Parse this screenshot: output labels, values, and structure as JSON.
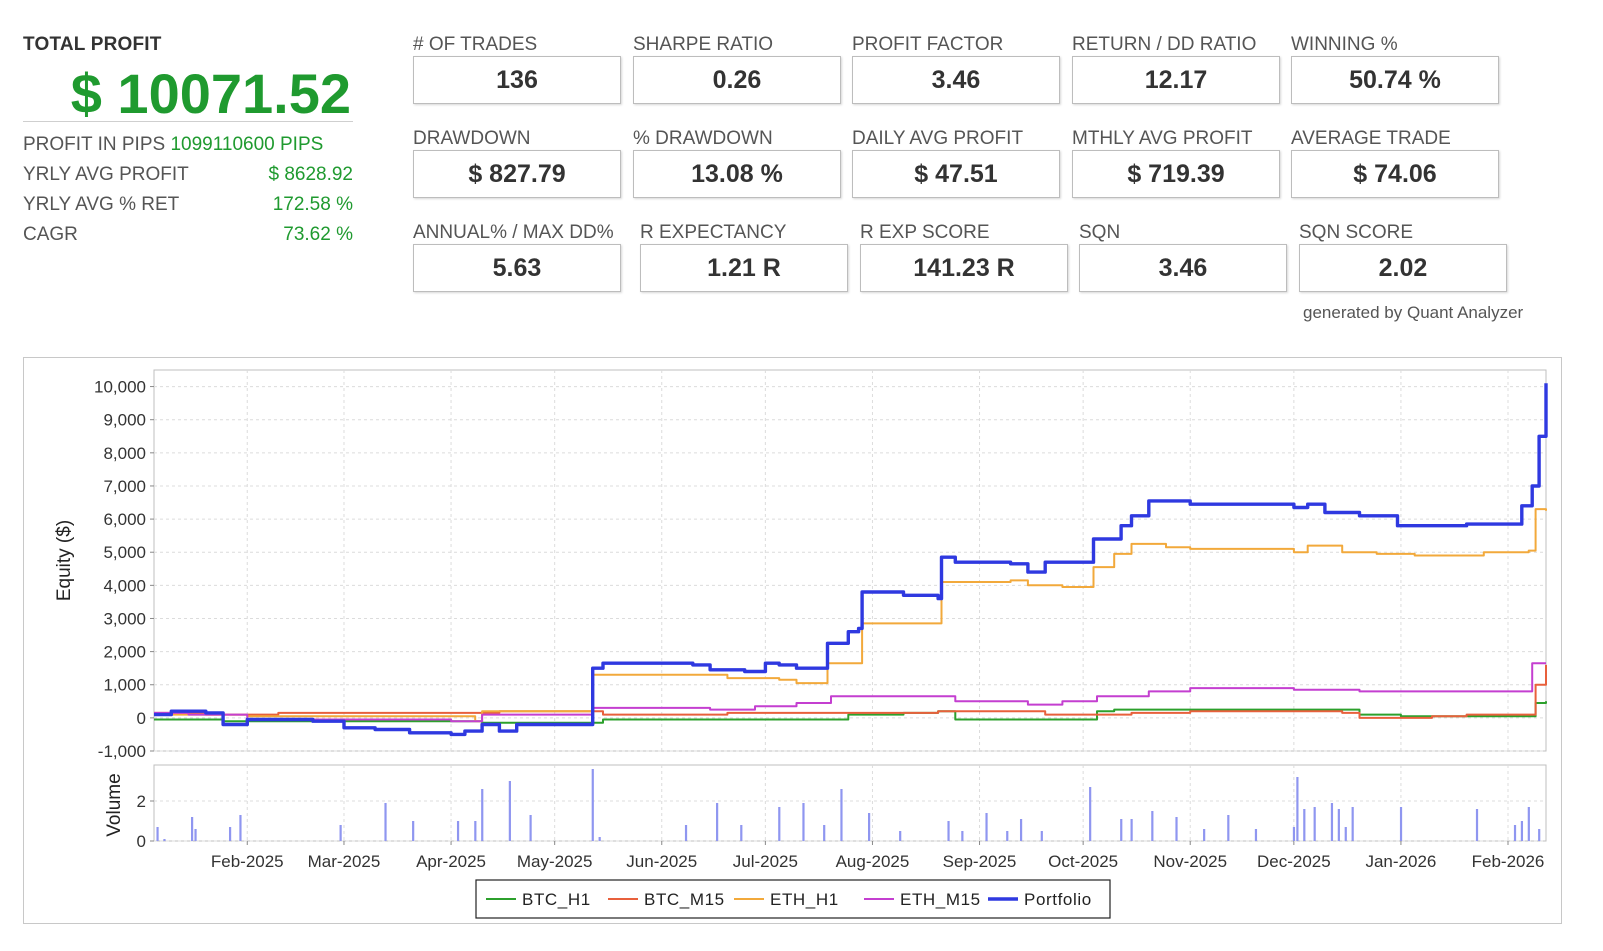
{
  "summary": {
    "total_profit_label": "TOTAL PROFIT",
    "total_profit_value": "$ 10071.52",
    "profit_in_pips_label": "PROFIT IN PIPS",
    "profit_in_pips_value": "1099110600 PIPS",
    "rows": [
      {
        "label": "YRLY AVG PROFIT",
        "value": "$ 8628.92"
      },
      {
        "label": "YRLY AVG % RET",
        "value": "172.58 %"
      },
      {
        "label": "CAGR",
        "value": "73.62 %"
      }
    ]
  },
  "metrics": [
    {
      "label": "# OF TRADES",
      "value": "136"
    },
    {
      "label": "SHARPE RATIO",
      "value": "0.26"
    },
    {
      "label": "PROFIT FACTOR",
      "value": "3.46"
    },
    {
      "label": "RETURN / DD RATIO",
      "value": "12.17"
    },
    {
      "label": "WINNING %",
      "value": "50.74 %"
    },
    {
      "label": "DRAWDOWN",
      "value": "$ 827.79"
    },
    {
      "label": "% DRAWDOWN",
      "value": "13.08 %"
    },
    {
      "label": "DAILY AVG PROFIT",
      "value": "$ 47.51"
    },
    {
      "label": "MTHLY AVG PROFIT",
      "value": "$ 719.39"
    },
    {
      "label": "AVERAGE TRADE",
      "value": "$ 74.06"
    },
    {
      "label": "ANNUAL% / MAX DD%",
      "value": "5.63"
    },
    {
      "label": "R EXPECTANCY",
      "value": "1.21 R"
    },
    {
      "label": "R EXP SCORE",
      "value": "141.23 R"
    },
    {
      "label": "SQN",
      "value": "3.46"
    },
    {
      "label": "SQN SCORE",
      "value": "2.02"
    }
  ],
  "footer": {
    "generated_by": "generated by Quant Analyzer"
  },
  "colors": {
    "profit_green": "#1f9a2f",
    "BTC_H1": "#2ca02c",
    "BTC_M15": "#e8603c",
    "ETH_H1": "#f2a93b",
    "ETH_M15": "#c43fd0",
    "Portfolio": "#2f39e0",
    "volume": "#8f96f0"
  },
  "chart_data": {
    "type": "line",
    "ylabel": "Equity ($)",
    "volume_label": "Volume",
    "ylim": [
      -1000,
      10500
    ],
    "y_ticks": [
      -1000,
      0,
      1000,
      2000,
      3000,
      4000,
      5000,
      6000,
      7000,
      8000,
      9000,
      10000
    ],
    "y_tick_labels": [
      "-1,000",
      "0",
      "1,000",
      "2,000",
      "3,000",
      "4,000",
      "5,000",
      "6,000",
      "7,000",
      "8,000",
      "9,000",
      "10,000"
    ],
    "volume_ylim": [
      0,
      3.8
    ],
    "volume_ticks": [
      0,
      2
    ],
    "x_range": [
      "2025-01-05",
      "2026-02-12"
    ],
    "x_ticks": [
      "2025-02-01",
      "2025-03-01",
      "2025-04-01",
      "2025-05-01",
      "2025-06-01",
      "2025-07-01",
      "2025-08-01",
      "2025-09-01",
      "2025-10-01",
      "2025-11-01",
      "2025-12-01",
      "2026-01-01",
      "2026-02-01"
    ],
    "x_tick_labels": [
      "Feb-2025",
      "Mar-2025",
      "Apr-2025",
      "May-2025",
      "Jun-2025",
      "Jul-2025",
      "Aug-2025",
      "Sep-2025",
      "Oct-2025",
      "Nov-2025",
      "Dec-2025",
      "Jan-2026",
      "Feb-2026"
    ],
    "legend_position": "bottom-center",
    "grid": true,
    "series": [
      {
        "name": "BTC_H1",
        "points": [
          [
            "2025-01-05",
            -50
          ],
          [
            "2025-01-20",
            -50
          ],
          [
            "2025-01-25",
            -100
          ],
          [
            "2025-02-15",
            -100
          ],
          [
            "2025-04-05",
            -100
          ],
          [
            "2025-04-10",
            -150
          ],
          [
            "2025-05-10",
            -150
          ],
          [
            "2025-05-15",
            -50
          ],
          [
            "2025-07-20",
            -50
          ],
          [
            "2025-07-25",
            100
          ],
          [
            "2025-08-10",
            150
          ],
          [
            "2025-08-20",
            200
          ],
          [
            "2025-08-25",
            -50
          ],
          [
            "2025-09-15",
            -50
          ],
          [
            "2025-10-01",
            -50
          ],
          [
            "2025-10-05",
            200
          ],
          [
            "2025-10-10",
            250
          ],
          [
            "2025-11-15",
            250
          ],
          [
            "2025-12-01",
            250
          ],
          [
            "2025-12-15",
            250
          ],
          [
            "2025-12-20",
            100
          ],
          [
            "2026-01-01",
            50
          ],
          [
            "2026-01-20",
            50
          ],
          [
            "2026-02-05",
            50
          ],
          [
            "2026-02-09",
            450
          ],
          [
            "2026-02-12",
            500
          ]
        ]
      },
      {
        "name": "BTC_M15",
        "points": [
          [
            "2025-01-05",
            150
          ],
          [
            "2025-01-15",
            150
          ],
          [
            "2025-01-20",
            100
          ],
          [
            "2025-02-01",
            100
          ],
          [
            "2025-02-10",
            150
          ],
          [
            "2025-04-10",
            150
          ],
          [
            "2025-04-15",
            200
          ],
          [
            "2025-05-10",
            200
          ],
          [
            "2025-05-15",
            100
          ],
          [
            "2025-06-15",
            100
          ],
          [
            "2025-06-20",
            150
          ],
          [
            "2025-07-15",
            150
          ],
          [
            "2025-08-10",
            150
          ],
          [
            "2025-08-20",
            200
          ],
          [
            "2025-09-10",
            200
          ],
          [
            "2025-09-20",
            100
          ],
          [
            "2025-10-10",
            100
          ],
          [
            "2025-10-15",
            150
          ],
          [
            "2025-11-01",
            200
          ],
          [
            "2025-12-01",
            200
          ],
          [
            "2025-12-15",
            150
          ],
          [
            "2025-12-20",
            0
          ],
          [
            "2026-01-10",
            50
          ],
          [
            "2026-01-20",
            100
          ],
          [
            "2026-02-05",
            100
          ],
          [
            "2026-02-09",
            1000
          ],
          [
            "2026-02-12",
            1600
          ]
        ]
      },
      {
        "name": "ETH_H1",
        "points": [
          [
            "2025-01-05",
            100
          ],
          [
            "2025-01-20",
            100
          ],
          [
            "2025-02-01",
            50
          ],
          [
            "2025-04-01",
            50
          ],
          [
            "2025-04-08",
            -100
          ],
          [
            "2025-04-10",
            200
          ],
          [
            "2025-05-11",
            200
          ],
          [
            "2025-05-12",
            1300
          ],
          [
            "2025-06-15",
            1300
          ],
          [
            "2025-06-20",
            1200
          ],
          [
            "2025-07-05",
            1150
          ],
          [
            "2025-07-10",
            1050
          ],
          [
            "2025-07-18",
            1050
          ],
          [
            "2025-07-19",
            1650
          ],
          [
            "2025-07-28",
            1650
          ],
          [
            "2025-07-29",
            2850
          ],
          [
            "2025-08-20",
            2850
          ],
          [
            "2025-08-21",
            4100
          ],
          [
            "2025-09-10",
            4150
          ],
          [
            "2025-09-15",
            4000
          ],
          [
            "2025-09-25",
            3950
          ],
          [
            "2025-10-03",
            3950
          ],
          [
            "2025-10-04",
            4550
          ],
          [
            "2025-10-10",
            4950
          ],
          [
            "2025-10-15",
            5250
          ],
          [
            "2025-10-25",
            5150
          ],
          [
            "2025-11-01",
            5100
          ],
          [
            "2025-11-15",
            5100
          ],
          [
            "2025-12-01",
            5000
          ],
          [
            "2025-12-05",
            5200
          ],
          [
            "2025-12-15",
            5000
          ],
          [
            "2025-12-25",
            4950
          ],
          [
            "2026-01-05",
            4900
          ],
          [
            "2026-01-25",
            5000
          ],
          [
            "2026-02-07",
            5050
          ],
          [
            "2026-02-09",
            6300
          ],
          [
            "2026-02-12",
            6250
          ]
        ]
      },
      {
        "name": "ETH_M15",
        "points": [
          [
            "2025-01-05",
            150
          ],
          [
            "2025-01-10",
            150
          ],
          [
            "2025-01-15",
            100
          ],
          [
            "2025-02-01",
            -50
          ],
          [
            "2025-03-01",
            -50
          ],
          [
            "2025-04-01",
            -100
          ],
          [
            "2025-04-10",
            100
          ],
          [
            "2025-05-11",
            100
          ],
          [
            "2025-05-12",
            300
          ],
          [
            "2025-06-15",
            250
          ],
          [
            "2025-06-28",
            350
          ],
          [
            "2025-07-10",
            450
          ],
          [
            "2025-07-20",
            650
          ],
          [
            "2025-08-20",
            650
          ],
          [
            "2025-08-25",
            500
          ],
          [
            "2025-09-15",
            400
          ],
          [
            "2025-09-25",
            500
          ],
          [
            "2025-10-05",
            650
          ],
          [
            "2025-10-20",
            800
          ],
          [
            "2025-11-01",
            900
          ],
          [
            "2025-11-15",
            900
          ],
          [
            "2025-12-01",
            850
          ],
          [
            "2025-12-15",
            850
          ],
          [
            "2025-12-20",
            800
          ],
          [
            "2026-01-15",
            800
          ],
          [
            "2026-02-05",
            800
          ],
          [
            "2026-02-08",
            1650
          ],
          [
            "2026-02-12",
            1650
          ]
        ]
      },
      {
        "name": "Portfolio",
        "points": [
          [
            "2025-01-05",
            100
          ],
          [
            "2025-01-10",
            200
          ],
          [
            "2025-01-20",
            150
          ],
          [
            "2025-01-25",
            -200
          ],
          [
            "2025-02-01",
            -50
          ],
          [
            "2025-02-20",
            -100
          ],
          [
            "2025-03-01",
            -300
          ],
          [
            "2025-03-10",
            -350
          ],
          [
            "2025-03-20",
            -450
          ],
          [
            "2025-04-01",
            -500
          ],
          [
            "2025-04-05",
            -400
          ],
          [
            "2025-04-10",
            -200
          ],
          [
            "2025-04-15",
            -400
          ],
          [
            "2025-04-20",
            -200
          ],
          [
            "2025-05-11",
            -200
          ],
          [
            "2025-05-12",
            1500
          ],
          [
            "2025-05-15",
            1650
          ],
          [
            "2025-06-10",
            1600
          ],
          [
            "2025-06-15",
            1450
          ],
          [
            "2025-06-25",
            1400
          ],
          [
            "2025-07-01",
            1650
          ],
          [
            "2025-07-05",
            1600
          ],
          [
            "2025-07-10",
            1500
          ],
          [
            "2025-07-18",
            1500
          ],
          [
            "2025-07-19",
            2250
          ],
          [
            "2025-07-25",
            2600
          ],
          [
            "2025-07-28",
            2700
          ],
          [
            "2025-07-29",
            3800
          ],
          [
            "2025-08-10",
            3700
          ],
          [
            "2025-08-20",
            3600
          ],
          [
            "2025-08-21",
            4850
          ],
          [
            "2025-08-25",
            4700
          ],
          [
            "2025-09-10",
            4650
          ],
          [
            "2025-09-15",
            4400
          ],
          [
            "2025-09-20",
            4700
          ],
          [
            "2025-10-03",
            4700
          ],
          [
            "2025-10-04",
            5400
          ],
          [
            "2025-10-10",
            5400
          ],
          [
            "2025-10-12",
            5800
          ],
          [
            "2025-10-15",
            6100
          ],
          [
            "2025-10-20",
            6550
          ],
          [
            "2025-11-01",
            6450
          ],
          [
            "2025-11-15",
            6450
          ],
          [
            "2025-12-01",
            6350
          ],
          [
            "2025-12-05",
            6450
          ],
          [
            "2025-12-10",
            6200
          ],
          [
            "2025-12-20",
            6100
          ],
          [
            "2025-12-31",
            5800
          ],
          [
            "2026-01-10",
            5800
          ],
          [
            "2026-01-20",
            5850
          ],
          [
            "2026-02-01",
            5850
          ],
          [
            "2026-02-05",
            6400
          ],
          [
            "2026-02-08",
            7000
          ],
          [
            "2026-02-10",
            8500
          ],
          [
            "2026-02-12",
            10100
          ]
        ]
      }
    ],
    "volume": [
      [
        "2025-01-06",
        0.7
      ],
      [
        "2025-01-08",
        0.1
      ],
      [
        "2025-01-16",
        1.2
      ],
      [
        "2025-01-17",
        0.6
      ],
      [
        "2025-01-27",
        0.7
      ],
      [
        "2025-01-30",
        1.3
      ],
      [
        "2025-02-28",
        0.8
      ],
      [
        "2025-03-13",
        1.9
      ],
      [
        "2025-03-21",
        1.0
      ],
      [
        "2025-04-03",
        1.0
      ],
      [
        "2025-04-08",
        1.0
      ],
      [
        "2025-04-10",
        2.6
      ],
      [
        "2025-04-18",
        3.0
      ],
      [
        "2025-04-24",
        1.3
      ],
      [
        "2025-05-12",
        3.6
      ],
      [
        "2025-05-14",
        0.2
      ],
      [
        "2025-06-08",
        0.8
      ],
      [
        "2025-06-17",
        1.9
      ],
      [
        "2025-06-24",
        0.8
      ],
      [
        "2025-07-05",
        1.7
      ],
      [
        "2025-07-12",
        1.9
      ],
      [
        "2025-07-18",
        0.8
      ],
      [
        "2025-07-23",
        2.6
      ],
      [
        "2025-07-31",
        1.4
      ],
      [
        "2025-08-09",
        0.5
      ],
      [
        "2025-08-23",
        1.0
      ],
      [
        "2025-08-27",
        0.5
      ],
      [
        "2025-09-03",
        1.4
      ],
      [
        "2025-09-09",
        0.5
      ],
      [
        "2025-09-13",
        1.1
      ],
      [
        "2025-09-19",
        0.5
      ],
      [
        "2025-10-03",
        2.7
      ],
      [
        "2025-10-12",
        1.1
      ],
      [
        "2025-10-15",
        1.1
      ],
      [
        "2025-10-21",
        1.5
      ],
      [
        "2025-10-28",
        1.2
      ],
      [
        "2025-11-05",
        0.6
      ],
      [
        "2025-11-12",
        1.3
      ],
      [
        "2025-11-20",
        0.6
      ],
      [
        "2025-12-01",
        0.7
      ],
      [
        "2025-12-02",
        3.2
      ],
      [
        "2025-12-04",
        1.6
      ],
      [
        "2025-12-07",
        1.7
      ],
      [
        "2025-12-12",
        1.9
      ],
      [
        "2025-12-14",
        1.6
      ],
      [
        "2025-12-16",
        0.7
      ],
      [
        "2025-12-18",
        1.7
      ],
      [
        "2026-01-01",
        1.7
      ],
      [
        "2026-01-23",
        1.6
      ],
      [
        "2026-02-03",
        0.8
      ],
      [
        "2026-02-05",
        1.0
      ],
      [
        "2026-02-07",
        1.7
      ],
      [
        "2026-02-10",
        0.6
      ]
    ]
  }
}
